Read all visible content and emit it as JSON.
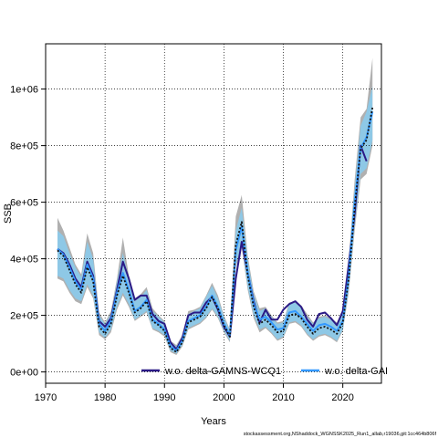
{
  "chart_data": {
    "type": "line",
    "title": "",
    "xlabel": "Years",
    "ylabel": "SSB",
    "xlim": [
      1970,
      2026.5
    ],
    "ylim": [
      -40000,
      1160000
    ],
    "xticks": [
      1970,
      1980,
      1990,
      2000,
      2010,
      2020
    ],
    "xtick_labels": [
      "1970",
      "1980",
      "1990",
      "2000",
      "2010",
      "2020"
    ],
    "yticks": [
      0,
      200000,
      400000,
      600000,
      800000,
      1000000
    ],
    "ytick_labels": [
      "0e+00",
      "2e+05",
      "4e+05",
      "6e+05",
      "8e+05",
      "1e+06"
    ],
    "grid": true,
    "legend_position": "bottom",
    "x": [
      1972,
      1973,
      1974,
      1975,
      1976,
      1977,
      1978,
      1979,
      1980,
      1981,
      1982,
      1983,
      1984,
      1985,
      1986,
      1987,
      1988,
      1989,
      1990,
      1991,
      1992,
      1993,
      1994,
      1995,
      1996,
      1997,
      1998,
      1999,
      2000,
      2001,
      2002,
      2003,
      2004,
      2005,
      2006,
      2007,
      2008,
      2009,
      2010,
      2011,
      2012,
      2013,
      2014,
      2015,
      2016,
      2017,
      2018,
      2019,
      2020,
      2021,
      2022,
      2023,
      2024,
      2025
    ],
    "series": [
      {
        "name": "w.o. delta-GAMNS-WCQ1",
        "color": "#2b1a86",
        "values": [
          435000,
          420000,
          380000,
          330000,
          300000,
          390000,
          340000,
          180000,
          160000,
          190000,
          290000,
          390000,
          330000,
          255000,
          270000,
          270000,
          205000,
          180000,
          170000,
          105000,
          80000,
          120000,
          200000,
          210000,
          210000,
          245000,
          265000,
          220000,
          160000,
          125000,
          330000,
          460000,
          350000,
          250000,
          175000,
          220000,
          185000,
          185000,
          220000,
          240000,
          250000,
          230000,
          185000,
          160000,
          205000,
          210000,
          190000,
          165000,
          215000,
          380000,
          560000,
          800000,
          745000,
          null
        ]
      },
      {
        "name": "w.o. delta-GAI",
        "color": "#3399ff",
        "values": [
          435000,
          415000,
          370000,
          320000,
          290000,
          380000,
          330000,
          170000,
          145000,
          180000,
          280000,
          350000,
          290000,
          215000,
          230000,
          255000,
          185000,
          170000,
          150000,
          90000,
          75000,
          110000,
          180000,
          190000,
          200000,
          230000,
          270000,
          230000,
          170000,
          130000,
          430000,
          515000,
          350000,
          240000,
          185000,
          195000,
          175000,
          150000,
          155000,
          210000,
          215000,
          195000,
          170000,
          145000,
          165000,
          170000,
          160000,
          145000,
          180000,
          340000,
          600000,
          790000,
          830000,
          920000
        ]
      },
      {
        "name": "",
        "color": "#111111",
        "dashed": true,
        "values": [
          430000,
          410000,
          360000,
          310000,
          280000,
          370000,
          320000,
          160000,
          135000,
          170000,
          270000,
          340000,
          280000,
          210000,
          225000,
          250000,
          180000,
          165000,
          145000,
          85000,
          70000,
          105000,
          175000,
          185000,
          195000,
          225000,
          265000,
          225000,
          165000,
          125000,
          450000,
          530000,
          340000,
          230000,
          170000,
          185000,
          165000,
          140000,
          145000,
          200000,
          205000,
          190000,
          160000,
          135000,
          155000,
          160000,
          150000,
          135000,
          175000,
          330000,
          580000,
          790000,
          820000,
          935000
        ]
      }
    ],
    "bands": [
      {
        "name": "",
        "color": "#b0b0b0",
        "lower": [
          330000,
          320000,
          280000,
          250000,
          240000,
          300000,
          260000,
          130000,
          115000,
          140000,
          220000,
          270000,
          230000,
          180000,
          195000,
          210000,
          150000,
          140000,
          125000,
          70000,
          60000,
          90000,
          150000,
          160000,
          170000,
          190000,
          220000,
          190000,
          140000,
          105000,
          370000,
          440000,
          290000,
          190000,
          140000,
          155000,
          135000,
          110000,
          120000,
          170000,
          175000,
          160000,
          130000,
          110000,
          125000,
          130000,
          120000,
          105000,
          145000,
          280000,
          500000,
          680000,
          700000,
          800000
        ],
        "upper": [
          545000,
          500000,
          440000,
          380000,
          345000,
          490000,
          420000,
          210000,
          175000,
          215000,
          330000,
          475000,
          340000,
          260000,
          275000,
          300000,
          225000,
          200000,
          180000,
          110000,
          95000,
          130000,
          215000,
          220000,
          230000,
          270000,
          315000,
          270000,
          200000,
          150000,
          550000,
          625000,
          410000,
          285000,
          225000,
          230000,
          200000,
          175000,
          180000,
          245000,
          250000,
          235000,
          205000,
          175000,
          195000,
          200000,
          190000,
          175000,
          220000,
          400000,
          680000,
          900000,
          930000,
          1110000
        ]
      },
      {
        "name": "",
        "color": "#8ec8e6",
        "lower": [
          340000,
          330000,
          290000,
          260000,
          250000,
          310000,
          270000,
          140000,
          120000,
          150000,
          230000,
          280000,
          240000,
          185000,
          200000,
          215000,
          155000,
          145000,
          130000,
          75000,
          65000,
          95000,
          155000,
          165000,
          175000,
          195000,
          225000,
          195000,
          145000,
          110000,
          380000,
          450000,
          300000,
          200000,
          150000,
          160000,
          140000,
          115000,
          125000,
          175000,
          180000,
          165000,
          135000,
          115000,
          130000,
          135000,
          125000,
          110000,
          150000,
          290000,
          520000,
          700000,
          720000,
          820000
        ],
        "upper": [
          500000,
          480000,
          420000,
          370000,
          335000,
          460000,
          400000,
          200000,
          170000,
          205000,
          320000,
          420000,
          330000,
          250000,
          265000,
          290000,
          215000,
          195000,
          175000,
          105000,
          90000,
          125000,
          205000,
          215000,
          225000,
          265000,
          305000,
          260000,
          195000,
          145000,
          500000,
          580000,
          395000,
          275000,
          215000,
          225000,
          195000,
          170000,
          175000,
          240000,
          245000,
          225000,
          195000,
          170000,
          190000,
          195000,
          185000,
          170000,
          215000,
          390000,
          650000,
          870000,
          920000,
          1010000
        ]
      }
    ]
  },
  "footer_text": "stockassessment.org,NShaddock_WGNSSK2025_Run1_allab,r19036,git:1cc464b806f"
}
